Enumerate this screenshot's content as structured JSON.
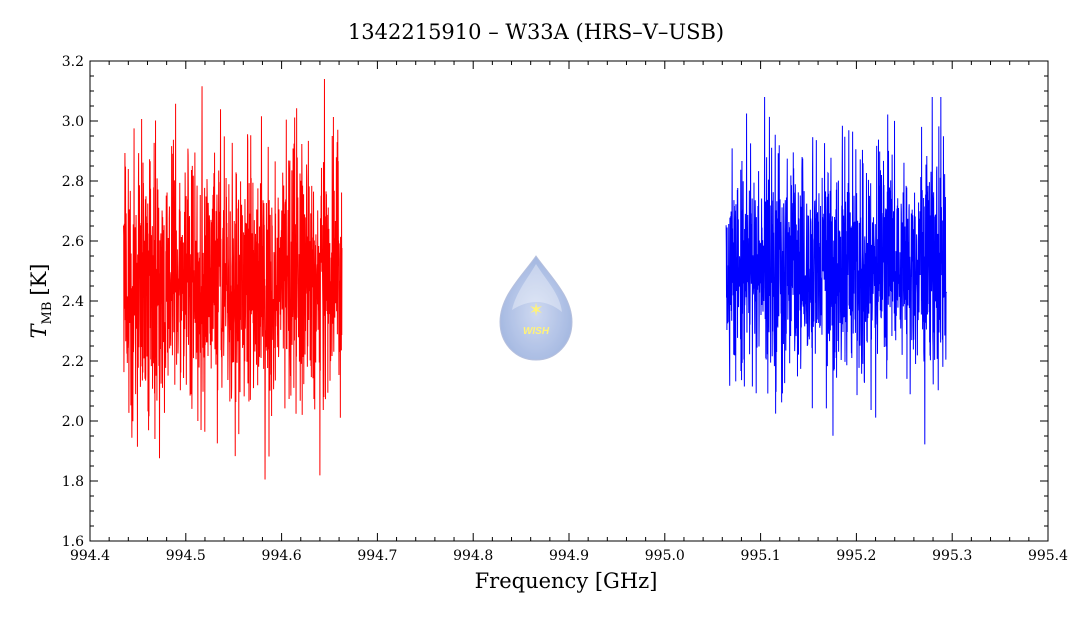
{
  "chart_data": {
    "type": "line",
    "title": "1342215910 – W33A (HRS–V–USB)",
    "xlabel": "Frequency [GHz]",
    "ylabel_main": "T",
    "ylabel_sub": "MB",
    "ylabel_unit": "[K]",
    "xlim": [
      994.4,
      995.4
    ],
    "ylim": [
      1.6,
      3.2
    ],
    "x_ticks": [
      "994.4",
      "994.5",
      "994.6",
      "994.7",
      "994.8",
      "994.9",
      "995.0",
      "995.1",
      "995.2",
      "995.3",
      "995.4"
    ],
    "y_ticks": [
      "1.6",
      "1.8",
      "2.0",
      "2.2",
      "2.4",
      "2.6",
      "2.8",
      "3.0",
      "3.2"
    ],
    "grid": false,
    "series": [
      {
        "color": "#ff0000",
        "x_range": [
          994.435,
          994.663
        ],
        "mean": 2.46,
        "min": 1.79,
        "max": 3.14
      },
      {
        "color": "#0000ff",
        "x_range": [
          995.064,
          995.294
        ],
        "mean": 2.5,
        "min": 1.92,
        "max": 3.08
      }
    ]
  },
  "logo": {
    "text": "WISH",
    "colors": {
      "drop_top": "#dbe4f4",
      "drop_bottom": "#8ea7da",
      "star": "#fff27a"
    }
  }
}
